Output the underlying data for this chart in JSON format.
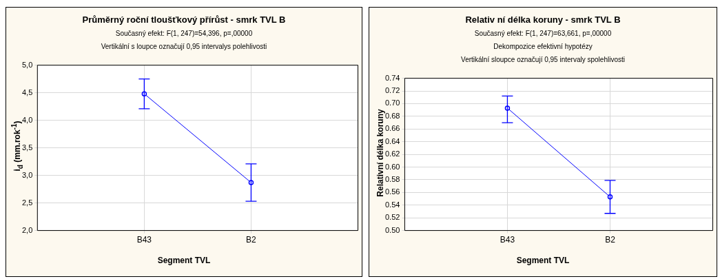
{
  "chart_data": [
    {
      "type": "line",
      "title": "Průměrný roční tloušťkový přírůst - smrk TVL B",
      "subtitle": "Současný efekt: F(1, 247)=54,396, p=,00000",
      "annotations": [
        "Vertikální s loupce označují 0,95 intervalys polehlivosti"
      ],
      "xlabel": "Segment TVL",
      "ylabel": "i$_{d}$ (mm.rok$^{-1}$)",
      "categories": [
        null,
        "B43",
        "B2",
        null
      ],
      "series": [
        {
          "color": "#0000ff",
          "values": [
            null,
            4.48,
            2.87,
            null
          ],
          "errors": [
            null,
            [
              4.21,
              4.75
            ],
            [
              2.53,
              3.21
            ],
            null
          ]
        }
      ],
      "ylim": [
        2,
        5
      ],
      "yticks": [
        {
          "value": 2,
          "label": "2,0"
        },
        {
          "value": 2.5,
          "label": "2,5"
        },
        {
          "value": 3,
          "label": "3,0"
        },
        {
          "value": 3.5,
          "label": "3,5"
        },
        {
          "value": 4,
          "label": "4,0"
        },
        {
          "value": 4.5,
          "label": "4,5"
        },
        {
          "value": 5,
          "label": "5,0"
        }
      ],
      "grid": true,
      "marker": "circle",
      "line_style": "solid"
    },
    {
      "type": "line",
      "title": "Relativ ní délka koruny - smrk TVL B",
      "subtitle": "Současný efekt: F(1, 247)=63,661, p=,00000",
      "annotations": [
        "Dekompozice efektivní hypotézy",
        "Vertikální sloupce označují 0,95 intervaly spolehlivosti"
      ],
      "xlabel": "Segment TVL",
      "ylabel": "Relativní délka koruny",
      "categories": [
        null,
        "B43",
        "B2",
        null
      ],
      "series": [
        {
          "color": "#0000ff",
          "values": [
            null,
            0.693,
            0.553,
            null
          ],
          "errors": [
            null,
            [
              0.67,
              0.712
            ],
            [
              0.527,
              0.579
            ],
            null
          ]
        }
      ],
      "ylim": [
        0.5,
        0.74
      ],
      "yticks": [
        {
          "value": 0.5,
          "label": "0.50"
        },
        {
          "value": 0.52,
          "label": "0.52"
        },
        {
          "value": 0.54,
          "label": "0.54"
        },
        {
          "value": 0.56,
          "label": "0.56"
        },
        {
          "value": 0.58,
          "label": "0.58"
        },
        {
          "value": 0.6,
          "label": "0.60"
        },
        {
          "value": 0.62,
          "label": "0.62"
        },
        {
          "value": 0.64,
          "label": "0.64"
        },
        {
          "value": 0.66,
          "label": "0.66"
        },
        {
          "value": 0.68,
          "label": "0.68"
        },
        {
          "value": 0.7,
          "label": "0.70"
        },
        {
          "value": 0.72,
          "label": "0.72"
        },
        {
          "value": 0.74,
          "label": "0.74"
        }
      ],
      "grid": true,
      "marker": "circle",
      "line_style": "solid"
    }
  ]
}
